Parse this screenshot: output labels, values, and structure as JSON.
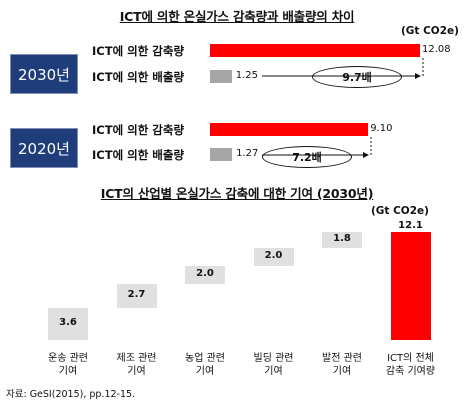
{
  "top": {
    "title": "ICT에 의한 온실가스 감축량과 배출량의 차이",
    "unit": "(Gt CO2e)",
    "colors": {
      "reduction": "#ff0000",
      "emission": "#a6a6a6",
      "year_box": "#1f3d7a"
    },
    "panels": [
      {
        "year": "2030년",
        "reduction_label": "ICT에 의한 감축량",
        "reduction_value": 12.08,
        "reduction_text": "12.08",
        "emission_label": "ICT에 의한 배출량",
        "emission_value": 1.25,
        "emission_text": "1.25",
        "ratio_text": "9.7배"
      },
      {
        "year": "2020년",
        "reduction_label": "ICT에 의한 감축량",
        "reduction_value": 9.1,
        "reduction_text": "9.10",
        "emission_label": "ICT에 의한 배출량",
        "emission_value": 1.27,
        "emission_text": "1.27",
        "ratio_text": "7.2배"
      }
    ]
  },
  "chart_data": {
    "type": "bar",
    "title": "ICT의 산업별 온실가스 감축에 대한 기여 (2030년)",
    "unit": "(Gt CO2e)",
    "categories": [
      "운송 관련\n기여",
      "제조 관련\n기여",
      "농업 관련\n기여",
      "빌딩 관련\n기여",
      "발전 관련\n기여",
      "ICT의 전체\n감축 기여량"
    ],
    "values": [
      3.6,
      2.7,
      2.0,
      2.0,
      1.8,
      12.1
    ],
    "value_labels": [
      "3.6",
      "2.7",
      "2.0",
      "2.0",
      "1.8",
      "12.1"
    ],
    "colors": {
      "step": "#e0e0e0",
      "total": "#ff0000"
    }
  },
  "source": "자료: GeSI(2015), pp.12-15."
}
